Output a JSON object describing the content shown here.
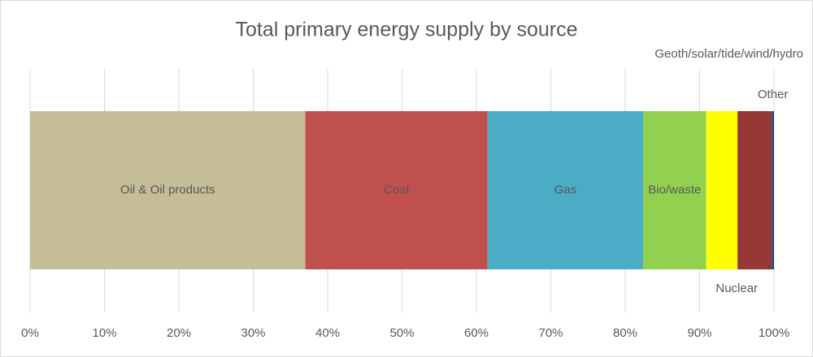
{
  "chart_data": {
    "type": "stacked-bar-horizontal",
    "title": "Total primary energy supply by source",
    "categories": [
      null
    ],
    "series": [
      {
        "name": "Oil & Oil products",
        "color": "#c4bd97",
        "values": [
          37.0
        ]
      },
      {
        "name": "Coal",
        "color": "#c0504d",
        "values": [
          24.5
        ]
      },
      {
        "name": "Gas",
        "color": "#4bacc6",
        "values": [
          20.9
        ]
      },
      {
        "name": "Bio/waste",
        "color": "#92d050",
        "values": [
          8.5
        ]
      },
      {
        "name": "Geoth/solar/tide/wind/hydro",
        "color": "#ffff00",
        "values": [
          4.2
        ]
      },
      {
        "name": "Nuclear",
        "color": "#953735",
        "values": [
          4.6
        ]
      },
      {
        "name": "Other",
        "color": "#1f497d",
        "values": [
          0.3
        ]
      }
    ],
    "xlim": [
      0,
      100
    ],
    "xticks": [
      {
        "value": 0,
        "label": "0%"
      },
      {
        "value": 10,
        "label": "10%"
      },
      {
        "value": 20,
        "label": "20%"
      },
      {
        "value": 30,
        "label": "30%"
      },
      {
        "value": 40,
        "label": "40%"
      },
      {
        "value": 50,
        "label": "50%"
      },
      {
        "value": 60,
        "label": "60%"
      },
      {
        "value": 70,
        "label": "70%"
      },
      {
        "value": 80,
        "label": "80%"
      },
      {
        "value": 90,
        "label": "90%"
      },
      {
        "value": 100,
        "label": "100%"
      }
    ],
    "grid": true
  }
}
